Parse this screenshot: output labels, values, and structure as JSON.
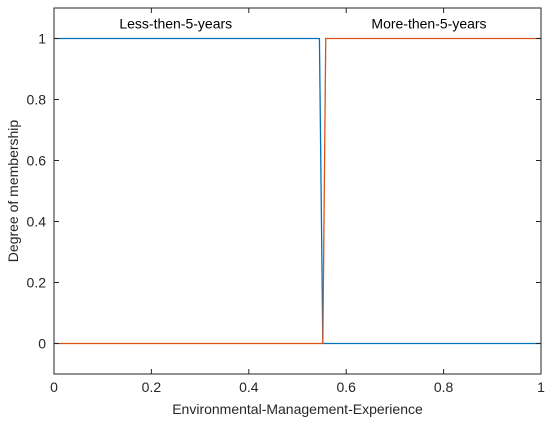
{
  "chart_data": {
    "type": "line",
    "title": "",
    "xlabel": "Environmental-Management-Experience",
    "ylabel": "Degree of membership",
    "xlim": [
      0,
      1
    ],
    "ylim": [
      -0.1,
      1.1
    ],
    "xticks": [
      0,
      0.2,
      0.4,
      0.6,
      0.8,
      1
    ],
    "xtick_labels": [
      "0",
      "0.2",
      "0.4",
      "0.6",
      "0.8",
      "1"
    ],
    "yticks": [
      0,
      0.2,
      0.4,
      0.6,
      0.8,
      1
    ],
    "ytick_labels": [
      "0",
      "0.2",
      "0.4",
      "0.6",
      "0.8",
      "1"
    ],
    "grid": false,
    "series": [
      {
        "color": "#0072BD",
        "x": [
          0,
          0.545,
          0.552,
          1
        ],
        "y": [
          1,
          1,
          0,
          0
        ]
      },
      {
        "color": "#D95319",
        "x": [
          0,
          0.552,
          0.558,
          1
        ],
        "y": [
          0,
          0,
          1,
          1
        ]
      }
    ],
    "annotations": [
      {
        "text": "Less-then-5-years",
        "x": 0.25,
        "y": 1.05
      },
      {
        "text": "More-then-5-years",
        "x": 0.77,
        "y": 1.05
      }
    ]
  }
}
